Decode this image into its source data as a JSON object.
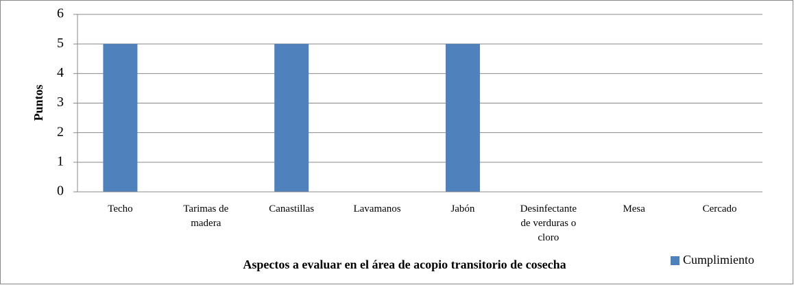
{
  "chart_data": {
    "type": "bar",
    "categories": [
      "Techo",
      "Tarimas de madera",
      "Canastillas",
      "Lavamanos",
      "Jabón",
      "Desinfectante de verduras o cloro",
      "Mesa",
      "Cercado"
    ],
    "series": [
      {
        "name": "Cumplimiento",
        "color": "#4f81bd",
        "values": [
          5,
          0,
          5,
          0,
          5,
          0,
          0,
          0
        ]
      }
    ],
    "x_label": "Aspectos a evaluar en el área de acopio transitorio de cosecha",
    "y_label": "Puntos",
    "ylim": [
      0,
      6
    ],
    "yticks": [
      0,
      1,
      2,
      3,
      4,
      5,
      6
    ],
    "grid": true,
    "legend": "bottom-right"
  }
}
